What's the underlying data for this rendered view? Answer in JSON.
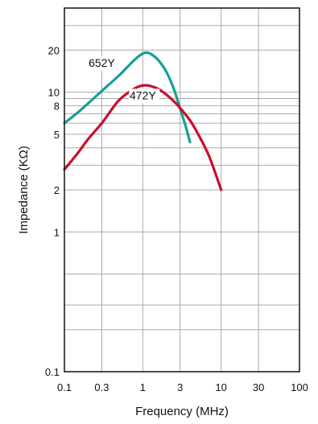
{
  "chart_data": {
    "type": "line",
    "title": "",
    "xlabel": "Frequency (MHz)",
    "ylabel": "Impedance (KΩ)",
    "x_scale": "log",
    "y_scale": "log",
    "xlim": [
      0.1,
      100
    ],
    "ylim": [
      0.1,
      40
    ],
    "grid": true,
    "x_ticks": [
      {
        "value": 0.1,
        "label": "0.1"
      },
      {
        "value": 0.3,
        "label": "0.3"
      },
      {
        "value": 1,
        "label": "1"
      },
      {
        "value": 3,
        "label": "3"
      },
      {
        "value": 10,
        "label": "10"
      },
      {
        "value": 30,
        "label": "30"
      },
      {
        "value": 100,
        "label": "100"
      }
    ],
    "y_ticks": [
      {
        "value": 0.1,
        "label": "0.1"
      },
      {
        "value": 1,
        "label": "1"
      },
      {
        "value": 2,
        "label": "2"
      },
      {
        "value": 5,
        "label": "5"
      },
      {
        "value": 8,
        "label": "8"
      },
      {
        "value": 10,
        "label": "10"
      },
      {
        "value": 20,
        "label": "20"
      }
    ],
    "series": [
      {
        "name": "652Y",
        "color": "#1a9e96",
        "x": [
          0.1,
          0.15,
          0.2,
          0.3,
          0.5,
          0.7,
          0.9,
          1.1,
          1.3,
          1.6,
          2.0,
          2.5,
          3.0,
          3.5,
          4.0
        ],
        "y": [
          6.0,
          7.2,
          8.3,
          10.2,
          13.2,
          16.0,
          18.2,
          19.2,
          18.6,
          16.8,
          14.0,
          10.5,
          7.6,
          5.8,
          4.4
        ]
      },
      {
        "name": "472Y",
        "color": "#c8102e",
        "x": [
          0.1,
          0.15,
          0.2,
          0.3,
          0.4,
          0.5,
          0.7,
          0.9,
          1.1,
          1.3,
          1.6,
          2.0,
          2.5,
          3.0,
          4.0,
          5.0,
          7.0,
          10.0
        ],
        "y": [
          2.8,
          3.7,
          4.6,
          6.0,
          7.5,
          8.8,
          10.2,
          11.0,
          11.2,
          11.0,
          10.5,
          9.6,
          8.6,
          7.7,
          6.3,
          5.1,
          3.5,
          2.0
        ]
      }
    ]
  }
}
